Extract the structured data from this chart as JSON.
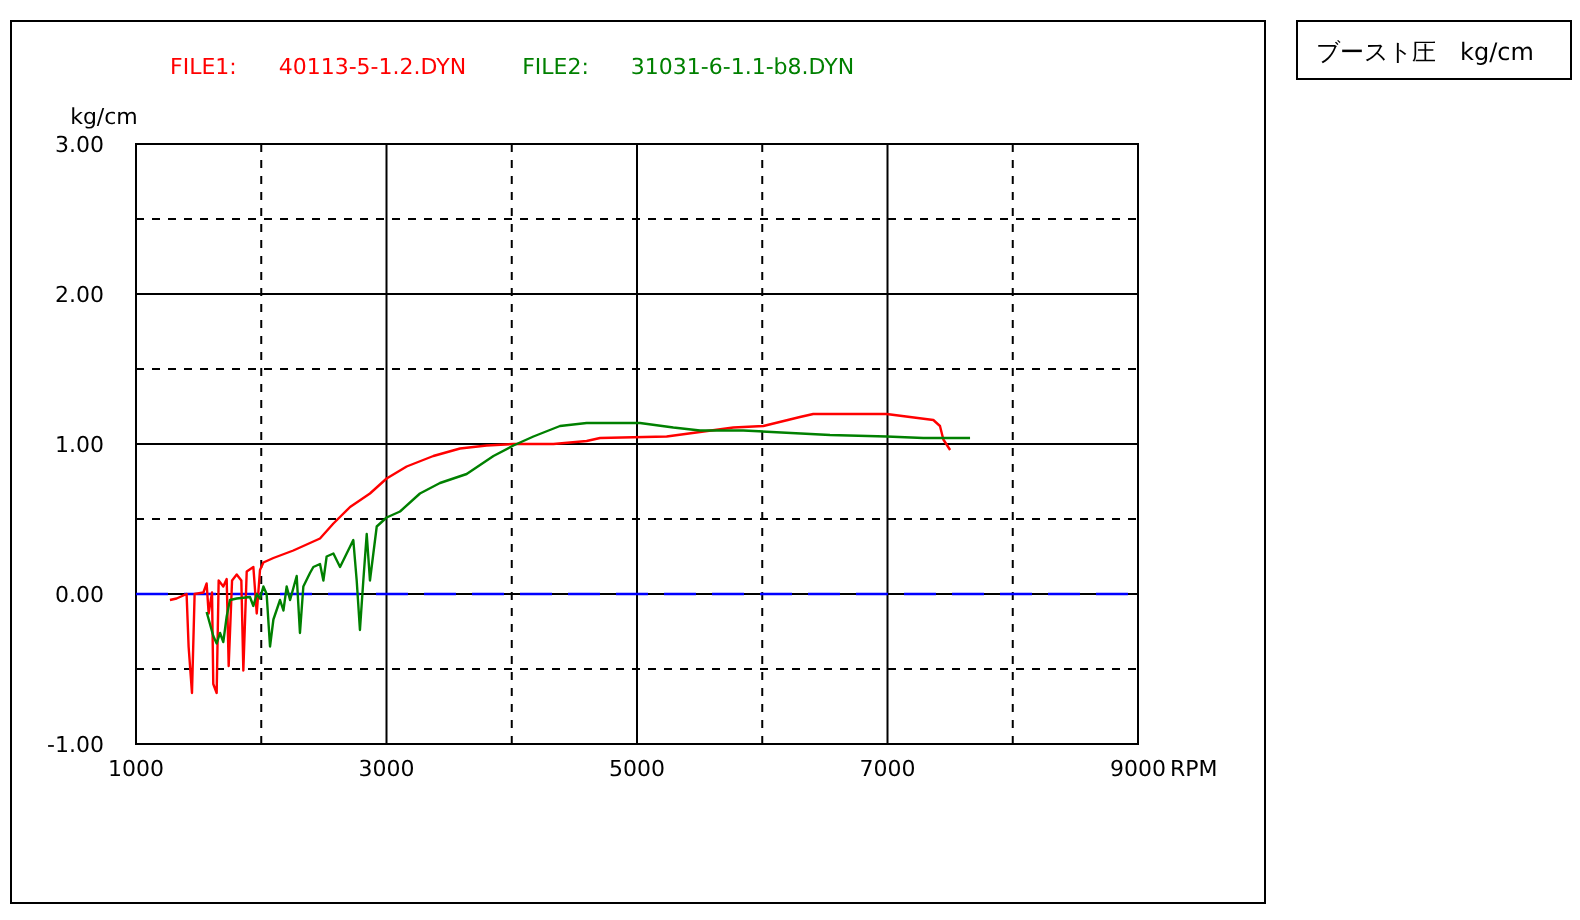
{
  "chart_data": {
    "type": "line",
    "title": "ブースト圧　kg/cm",
    "xlabel": "RPM",
    "ylabel": "kg/cm",
    "xlim": [
      1000,
      9000
    ],
    "ylim": [
      -1,
      3
    ],
    "xticks": [
      1000,
      {
        "value": 2000,
        "label": null
      },
      3000,
      {
        "value": 4000,
        "label": null
      },
      5000,
      {
        "value": 6000,
        "label": null
      },
      7000,
      {
        "value": 8000,
        "label": null
      },
      9000
    ],
    "yticks": [
      {
        "value": -1,
        "label": "-1.00"
      },
      {
        "value": -0.5,
        "label": null
      },
      {
        "value": 0,
        "label": "0.00"
      },
      {
        "value": 0.5,
        "label": null
      },
      {
        "value": 1,
        "label": "1.00"
      },
      {
        "value": 1.5,
        "label": null
      },
      {
        "value": 2,
        "label": "2.00"
      },
      {
        "value": 2.5,
        "label": null
      },
      {
        "value": 3,
        "label": "3.00"
      }
    ],
    "grid": true,
    "legend": "top",
    "line_style": "solid",
    "marker": "none",
    "ref_lines": [
      {
        "axis": "y",
        "value": 0,
        "label": null,
        "color": "#0000ff",
        "line_style": "dashed"
      }
    ],
    "series": [
      {
        "name": "FILE1:      40113-5-1.2.DYN",
        "color": "#ff0000",
        "x": [
          1271,
          1324,
          1404,
          1420,
          1447,
          1468,
          1538,
          1564,
          1580,
          1607,
          1617,
          1644,
          1660,
          1697,
          1724,
          1740,
          1767,
          1804,
          1841,
          1857,
          1884,
          1937,
          1964,
          1990,
          2017,
          2097,
          2256,
          2469,
          2576,
          2709,
          2868,
          3001,
          3161,
          3374,
          3587,
          3800,
          4013,
          4333,
          4598,
          4705,
          5237,
          5503,
          5769,
          6009,
          6301,
          6407,
          6993,
          7366,
          7419,
          7446,
          7500
        ],
        "values": [
          -0.04,
          -0.03,
          0.0,
          -0.35,
          -0.66,
          0.0,
          0.01,
          0.07,
          -0.13,
          0.01,
          -0.6,
          -0.66,
          0.09,
          0.05,
          0.1,
          -0.48,
          0.09,
          0.13,
          0.09,
          -0.51,
          0.15,
          0.18,
          -0.13,
          0.16,
          0.21,
          0.24,
          0.29,
          0.37,
          0.47,
          0.58,
          0.67,
          0.77,
          0.85,
          0.92,
          0.97,
          0.99,
          1.0,
          1.0,
          1.02,
          1.04,
          1.05,
          1.08,
          1.11,
          1.12,
          1.18,
          1.2,
          1.2,
          1.16,
          1.12,
          1.03,
          0.96
        ]
      },
      {
        "name": "FILE2:      31031-6-1.1-b8.DYN",
        "color": "#008000",
        "x": [
          1564,
          1617,
          1644,
          1671,
          1697,
          1724,
          1750,
          1804,
          1910,
          1937,
          1964,
          1990,
          2017,
          2043,
          2070,
          2097,
          2150,
          2177,
          2203,
          2230,
          2283,
          2309,
          2336,
          2389,
          2416,
          2469,
          2496,
          2522,
          2576,
          2629,
          2682,
          2735,
          2762,
          2788,
          2815,
          2842,
          2868,
          2895,
          2922,
          3001,
          3108,
          3267,
          3427,
          3640,
          3854,
          4013,
          4173,
          4385,
          4598,
          4705,
          5024,
          5290,
          5503,
          5849,
          6541,
          6993,
          7286,
          7659
        ],
        "values": [
          -0.12,
          -0.28,
          -0.33,
          -0.26,
          -0.32,
          -0.15,
          -0.04,
          -0.03,
          -0.02,
          -0.08,
          0.0,
          -0.03,
          0.05,
          0.0,
          -0.35,
          -0.17,
          -0.04,
          -0.11,
          0.05,
          -0.04,
          0.12,
          -0.26,
          0.05,
          0.14,
          0.18,
          0.2,
          0.09,
          0.25,
          0.27,
          0.18,
          0.27,
          0.36,
          0.09,
          -0.24,
          0.09,
          0.4,
          0.09,
          0.27,
          0.45,
          0.51,
          0.55,
          0.67,
          0.74,
          0.8,
          0.92,
          0.99,
          1.05,
          1.12,
          1.14,
          1.14,
          1.14,
          1.11,
          1.09,
          1.09,
          1.06,
          1.05,
          1.04,
          1.04
        ]
      }
    ]
  }
}
